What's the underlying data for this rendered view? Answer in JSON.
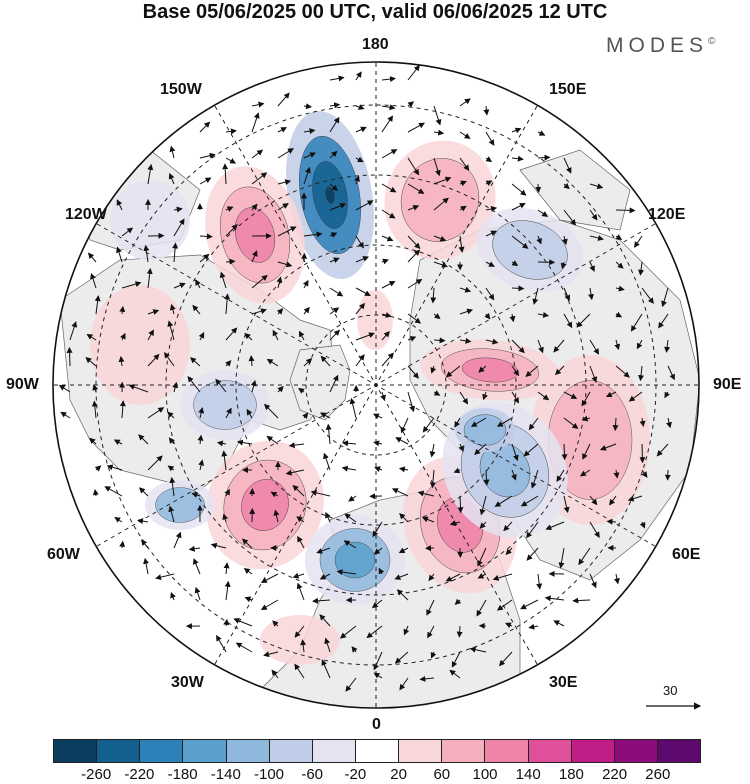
{
  "title": "Base 05/06/2025 00 UTC, valid 06/06/2025 12 UTC",
  "brand": "MODES",
  "brand_mark": "©",
  "map": {
    "projection": "north polar stereographic",
    "land_color": "#ececec",
    "lon_labels": {
      "top": "180",
      "bottom": "0",
      "left": "90W",
      "right": "90E",
      "ul1": "150W",
      "ul2": "120W",
      "ur1": "150E",
      "ur2": "120E",
      "ll1": "60W",
      "ll2": "30W",
      "lr1": "60E",
      "lr2": "30E"
    },
    "wind_reference_value": "30"
  },
  "colorbar": {
    "colors": [
      "#0b3d5e",
      "#135f8f",
      "#2e80b8",
      "#5aa0cd",
      "#8fb8dd",
      "#bfcde8",
      "#e4e3f1",
      "#ffffff",
      "#f9d6d9",
      "#f5b0be",
      "#ef83a8",
      "#e0509a",
      "#c01e86",
      "#8e0c7a",
      "#5c0a6e"
    ],
    "ticks": [
      "-260",
      "-220",
      "-180",
      "-140",
      "-100",
      "-60",
      "-20",
      "20",
      "60",
      "100",
      "140",
      "180",
      "220",
      "260"
    ]
  }
}
